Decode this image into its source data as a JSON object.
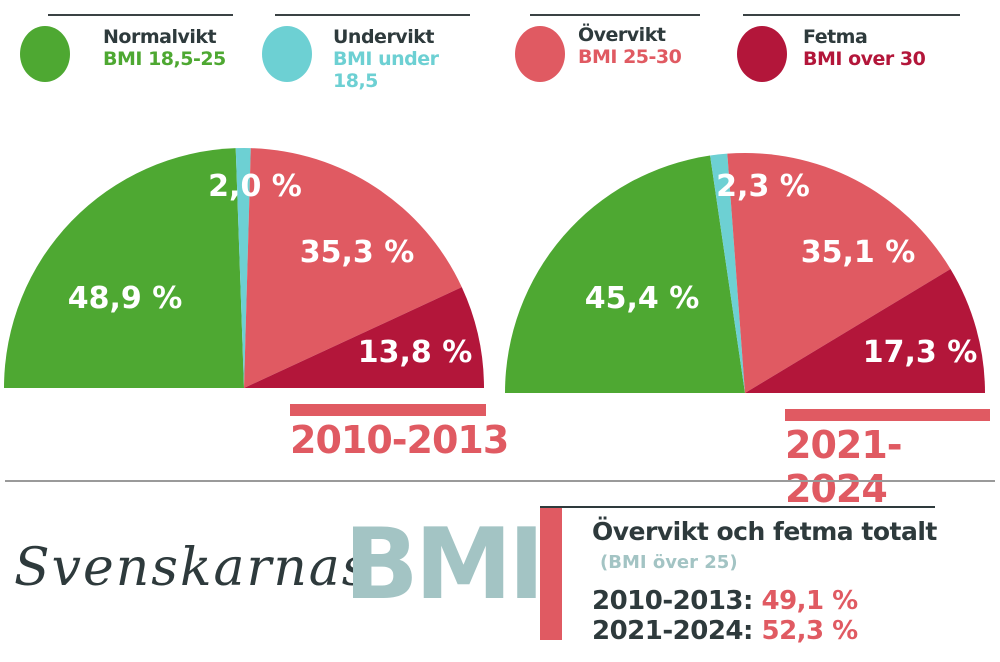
{
  "legend": [
    {
      "title": "Normalvikt",
      "sub": "BMI 18,5-25",
      "color": "#4ea832"
    },
    {
      "title": "Undervikt",
      "sub": "BMI under 18,5",
      "color": "#6dd0d3"
    },
    {
      "title": "Övervikt",
      "sub": "BMI 25-30",
      "color": "#e05a62"
    },
    {
      "title": "Fetma",
      "sub": "BMI over 30",
      "color": "#b3163a"
    }
  ],
  "chart_data": [
    {
      "type": "pie",
      "layout": "semicircle",
      "title": "2010-2013",
      "categories": [
        "Normalvikt",
        "Undervikt",
        "Övervikt",
        "Fetma"
      ],
      "values": [
        48.9,
        2.0,
        35.3,
        13.8
      ],
      "labels": [
        "48,9 %",
        "2,0 %",
        "35,3 %",
        "13,8 %"
      ]
    },
    {
      "type": "pie",
      "layout": "semicircle",
      "title": "2021-2024",
      "categories": [
        "Normalvikt",
        "Undervikt",
        "Övervikt",
        "Fetma"
      ],
      "values": [
        45.4,
        2.3,
        35.1,
        17.3
      ],
      "labels": [
        "45,4 %",
        "2,3 %",
        "35,1 %",
        "17,3 %"
      ]
    }
  ],
  "footer": {
    "script_title": "Svenskarnas",
    "big_title": "BMI",
    "summary_title": "Övervikt och fetma totalt",
    "summary_sub": "(BMI över 25)",
    "rows": [
      {
        "period": "2010-2013:",
        "value": "49,1 %"
      },
      {
        "period": "2021-2024:",
        "value": "52,3 %"
      }
    ]
  }
}
